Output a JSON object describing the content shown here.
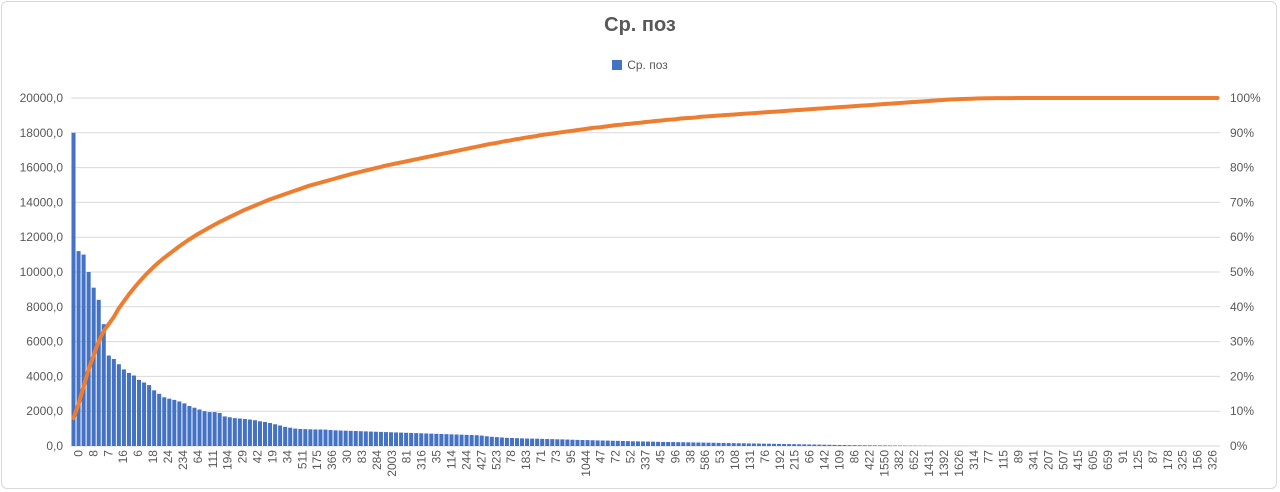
{
  "chart_data": {
    "type": "bar",
    "title": "Ср. поз",
    "legend": {
      "position": "top",
      "entries": [
        "Ср. поз"
      ]
    },
    "grid": true,
    "colors": {
      "bars": "#4472c4",
      "cumulative_line": "#ed7d31"
    },
    "y_left": {
      "range": [
        0,
        20000
      ],
      "ticks": [
        "0,0",
        "2000,0",
        "4000,0",
        "6000,0",
        "8000,0",
        "10000,0",
        "12000,0",
        "14000,0",
        "16000,0",
        "18000,0",
        "20000,0"
      ]
    },
    "y_right": {
      "range": [
        0,
        100
      ],
      "ticks": [
        "0%",
        "10%",
        "20%",
        "30%",
        "40%",
        "50%",
        "60%",
        "70%",
        "80%",
        "90%",
        "100%"
      ]
    },
    "x_tick_labels": [
      "0",
      "8",
      "7",
      "16",
      "6",
      "18",
      "24",
      "234",
      "64",
      "111",
      "194",
      "29",
      "42",
      "19",
      "34",
      "511",
      "175",
      "366",
      "30",
      "83",
      "284",
      "2003",
      "81",
      "316",
      "35",
      "114",
      "244",
      "427",
      "523",
      "78",
      "183",
      "71",
      "73",
      "95",
      "1044",
      "47",
      "72",
      "52",
      "337",
      "45",
      "96",
      "38",
      "586",
      "53",
      "108",
      "131",
      "76",
      "192",
      "215",
      "66",
      "142",
      "109",
      "86",
      "422",
      "1550",
      "382",
      "652",
      "1431",
      "1392",
      "1626",
      "314",
      "77",
      "115",
      "89",
      "341",
      "207",
      "507",
      "415",
      "605",
      "659",
      "91",
      "125",
      "87",
      "178",
      "325",
      "156",
      "326"
    ],
    "series": [
      {
        "name": "Ср. поз",
        "type": "bar",
        "axis": "left",
        "values": [
          18000,
          11200,
          11000,
          10000,
          9100,
          8400,
          7000,
          5200,
          5000,
          4700,
          4400,
          4200,
          4050,
          3800,
          3650,
          3500,
          3200,
          3000,
          2800,
          2720,
          2650,
          2560,
          2450,
          2300,
          2200,
          2100,
          2000,
          1950,
          1950,
          1900,
          1700,
          1650,
          1600,
          1580,
          1550,
          1520,
          1480,
          1420,
          1380,
          1320,
          1250,
          1180,
          1100,
          1050,
          1000,
          980,
          970,
          960,
          950,
          950,
          940,
          920,
          900,
          890,
          880,
          870,
          860,
          850,
          840,
          830,
          820,
          810,
          800,
          790,
          780,
          770,
          760,
          750,
          740,
          730,
          720,
          710,
          700,
          690,
          680,
          670,
          660,
          650,
          640,
          630,
          620,
          600,
          560,
          530,
          510,
          490,
          470,
          460,
          450,
          440,
          430,
          425,
          420,
          410,
          400,
          395,
          385,
          380,
          370,
          360,
          350,
          345,
          340,
          330,
          320,
          315,
          310,
          300,
          295,
          290,
          280,
          270,
          265,
          260,
          255,
          250,
          240,
          235,
          230,
          225,
          220,
          215,
          210,
          205,
          200,
          195,
          190,
          185,
          180,
          175,
          170,
          165,
          160,
          155,
          150,
          145,
          140,
          135,
          130,
          125,
          120,
          115,
          110,
          105,
          100,
          95,
          90,
          85,
          80,
          75,
          70,
          65,
          60,
          55,
          50,
          48,
          45,
          42,
          40,
          38,
          35,
          32,
          30,
          28,
          25,
          22,
          20,
          18,
          16,
          14,
          12,
          10,
          9,
          8,
          7,
          6,
          5,
          5,
          4,
          4,
          3,
          3,
          3,
          2,
          2,
          2,
          2,
          2,
          2,
          1,
          1,
          1,
          1,
          1,
          1,
          1,
          1,
          1,
          1,
          1,
          1,
          1,
          1,
          1,
          1,
          1,
          1,
          1,
          1,
          1,
          1,
          1,
          1,
          1,
          1,
          1,
          1,
          1,
          1,
          1,
          1,
          1,
          1,
          1,
          1,
          1,
          1,
          1
        ]
      },
      {
        "name": "",
        "type": "line",
        "axis": "right",
        "values_percent": [
          8,
          12,
          17,
          22,
          26,
          30,
          33,
          35,
          37,
          39.5,
          41.5,
          43.5,
          45.3,
          47,
          48.6,
          50.1,
          51.5,
          52.8,
          54,
          55.1,
          56.2,
          57.3,
          58.3,
          59.3,
          60.2,
          61.1,
          61.9,
          62.7,
          63.5,
          64.3,
          65,
          65.7,
          66.4,
          67.1,
          67.8,
          68.4,
          69,
          69.6,
          70.2,
          70.8,
          71.3,
          71.8,
          72.3,
          72.8,
          73.3,
          73.8,
          74.3,
          74.8,
          75.2,
          75.6,
          76,
          76.4,
          76.8,
          77.2,
          77.6,
          78,
          78.4,
          78.7,
          79.1,
          79.4,
          79.8,
          80.1,
          80.5,
          80.8,
          81.1,
          81.4,
          81.7,
          82,
          82.3,
          82.6,
          82.9,
          83.2,
          83.5,
          83.8,
          84.1,
          84.4,
          84.7,
          85,
          85.3,
          85.6,
          85.9,
          86.2,
          86.5,
          86.8,
          87,
          87.3,
          87.6,
          87.8,
          88.1,
          88.3,
          88.6,
          88.8,
          89,
          89.3,
          89.5,
          89.7,
          89.9,
          90.1,
          90.3,
          90.5,
          90.7,
          90.9,
          91.1,
          91.3,
          91.5,
          91.6,
          91.8,
          92,
          92.2,
          92.3,
          92.5,
          92.6,
          92.8,
          92.9,
          93.1,
          93.2,
          93.4,
          93.5,
          93.7,
          93.8,
          93.9,
          94.1,
          94.2,
          94.3,
          94.4,
          94.6,
          94.7,
          94.8,
          94.9,
          95,
          95.1,
          95.2,
          95.3,
          95.4,
          95.5,
          95.6,
          95.7,
          95.8,
          95.9,
          96,
          96.1,
          96.2,
          96.3,
          96.4,
          96.5,
          96.6,
          96.7,
          96.8,
          96.9,
          97,
          97.1,
          97.2,
          97.3,
          97.4,
          97.5,
          97.6,
          97.7,
          97.8,
          97.9,
          98,
          98.1,
          98.2,
          98.3,
          98.4,
          98.5,
          98.6,
          98.7,
          98.8,
          98.9,
          99,
          99.1,
          99.2,
          99.3,
          99.4,
          99.5,
          99.6,
          99.65,
          99.7,
          99.75,
          99.8,
          99.85,
          99.9,
          99.92,
          99.94,
          99.95,
          99.96,
          99.97,
          99.98,
          99.99,
          100,
          100,
          100,
          100,
          100,
          100,
          100,
          100,
          100,
          100,
          100,
          100,
          100,
          100,
          100,
          100,
          100,
          100,
          100,
          100,
          100,
          100,
          100,
          100,
          100,
          100,
          100,
          100,
          100,
          100,
          100,
          100,
          100,
          100,
          100,
          100,
          100,
          100,
          100,
          100
        ]
      }
    ]
  }
}
